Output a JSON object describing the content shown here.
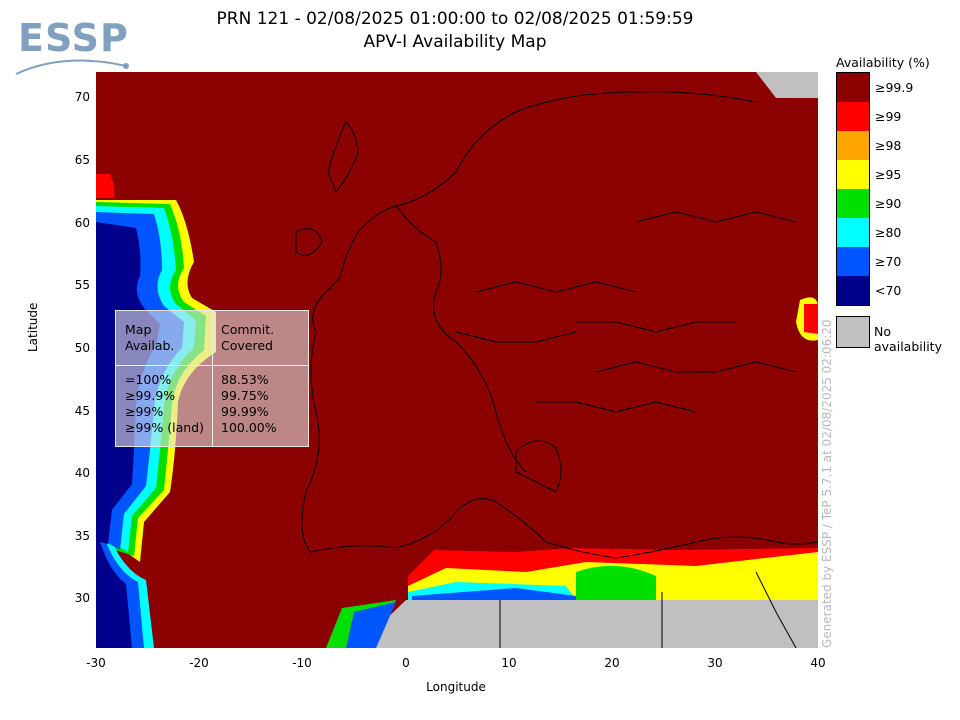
{
  "logo": {
    "text": "ESSP"
  },
  "title": {
    "line1": "PRN 121 - 02/08/2025 01:00:00 to 02/08/2025 01:59:59",
    "line2": "APV-I Availability Map"
  },
  "axes": {
    "x_label": "Longitude",
    "y_label": "Latitude",
    "x_ticks": [
      "-30",
      "-20",
      "-10",
      "0",
      "10",
      "20",
      "30",
      "40"
    ],
    "y_ticks": [
      "70",
      "65",
      "60",
      "55",
      "50",
      "45",
      "40",
      "35",
      "30"
    ],
    "lon_range": [
      -30,
      40
    ],
    "lat_range": [
      26,
      72
    ]
  },
  "stats_table": {
    "col1_header": "Map\nAvailab.",
    "col2_header": "Commit.\nCovered",
    "col1_values": "=100%\n≥99.9%\n≥99%\n≥99% (land)",
    "col2_values": "88.53%\n99.75%\n99.99%\n100.00%"
  },
  "legend": {
    "title": "Availability (%)",
    "items": [
      {
        "label": "≥99.9",
        "color": "#8b0000"
      },
      {
        "label": "≥99",
        "color": "#ff0000"
      },
      {
        "label": "≥98",
        "color": "#ffa500"
      },
      {
        "label": "≥95",
        "color": "#ffff00"
      },
      {
        "label": "≥90",
        "color": "#00e000"
      },
      {
        "label": "≥80",
        "color": "#00ffff"
      },
      {
        "label": "≥70",
        "color": "#0055ff"
      },
      {
        "label": "<70",
        "color": "#00008b"
      }
    ],
    "no_availability": {
      "label": "No availability",
      "color": "#c0c0c0"
    }
  },
  "generated_by": "Generated by ESSP / TeP 5.7.1 at 02/08/2025 02:06:20"
}
